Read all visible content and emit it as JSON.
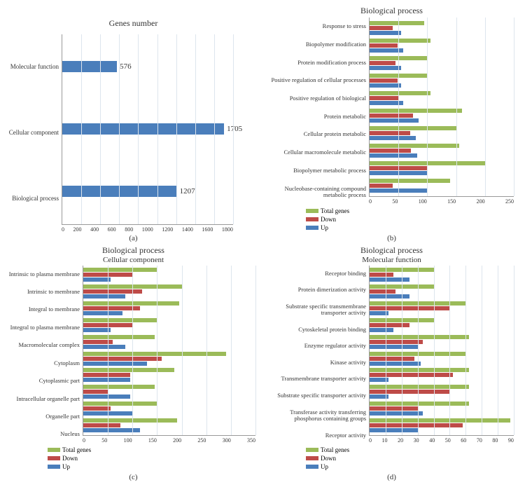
{
  "colors": {
    "blue": "#4a7ebb",
    "red": "#be4b48",
    "green": "#9bbb59",
    "grid": "#dde5ed"
  },
  "panel_a": {
    "title": "Genes number",
    "caption": "(a)",
    "categories": [
      "Molecular function",
      "Cellular component",
      "Biological process"
    ],
    "values": [
      576,
      1705,
      1207
    ],
    "xmax": 1800,
    "xticks": [
      0,
      200,
      400,
      600,
      800,
      1000,
      1200,
      1400,
      1600,
      1800
    ],
    "bar_color": "#4a7ebb"
  },
  "panel_b": {
    "title": "Biological process",
    "caption": "(b)",
    "categories": [
      "Response to stress",
      "Biopolymer modification",
      "Protein modification process",
      "Positive regulation of cellular processes",
      "Positive regulation of biological",
      "Protein metabolic",
      "Cellular protein metabolic",
      "Cellular macromolecule metabolic",
      "Biopolymer metabolic process",
      "Nucleobase-containing compound metabolic process"
    ],
    "series": {
      "Total genes": [
        95,
        105,
        100,
        100,
        105,
        160,
        150,
        155,
        200,
        140
      ],
      "Down": [
        40,
        48,
        45,
        48,
        50,
        75,
        70,
        72,
        100,
        40
      ],
      "Up": [
        55,
        58,
        55,
        55,
        58,
        85,
        80,
        83,
        100,
        100
      ]
    },
    "xmax": 250,
    "xticks": [
      0,
      50,
      100,
      150,
      200,
      250
    ],
    "colors": {
      "Total genes": "#9bbb59",
      "Down": "#be4b48",
      "Up": "#4a7ebb"
    }
  },
  "panel_c": {
    "title": "Biological process",
    "subtitle": "Cellular component",
    "caption": "(c)",
    "categories": [
      "Intrinsic to plasma membrane",
      "Intrinsic to membrane",
      "Integral to membrane",
      "Integral to plasma membrane",
      "Macromolecular complex",
      "Cytoplasm",
      "Cytoplasmic part",
      "Intracellular organelle part",
      "Organelle part",
      "Nucleus"
    ],
    "series": {
      "Total genes": [
        150,
        200,
        195,
        150,
        145,
        290,
        185,
        145,
        150,
        190
      ],
      "Down": [
        100,
        120,
        115,
        100,
        60,
        160,
        95,
        50,
        55,
        75
      ],
      "Up": [
        55,
        85,
        80,
        55,
        85,
        130,
        95,
        95,
        100,
        115
      ]
    },
    "xmax": 350,
    "xticks": [
      0,
      50,
      100,
      150,
      200,
      250,
      300,
      350
    ],
    "colors": {
      "Total genes": "#9bbb59",
      "Down": "#be4b48",
      "Up": "#4a7ebb"
    }
  },
  "panel_d": {
    "title": "Biological process",
    "subtitle": "Molecular function",
    "caption": "(d)",
    "categories": [
      "Receptor binding",
      "Protein dimerization activity",
      "Substrate specific transmembrane transporter activity",
      "Cytoskeletal protein binding",
      "Enzyme regulator activity",
      "Kinase activity",
      "Transmembrane transporter activity",
      "Substrate specific transporter activity",
      "Transferase activity transferring phosphorus containing groups",
      "Receptor activity"
    ],
    "series": {
      "Total genes": [
        40,
        40,
        60,
        40,
        62,
        60,
        62,
        62,
        62,
        88
      ],
      "Down": [
        15,
        16,
        50,
        25,
        33,
        28,
        52,
        50,
        30,
        58
      ],
      "Up": [
        25,
        25,
        12,
        15,
        30,
        32,
        12,
        12,
        33,
        30
      ]
    },
    "xmax": 90,
    "xticks": [
      0,
      10,
      20,
      30,
      40,
      50,
      60,
      70,
      80,
      90
    ],
    "colors": {
      "Total genes": "#9bbb59",
      "Down": "#be4b48",
      "Up": "#4a7ebb"
    }
  },
  "legend_labels": {
    "total": "Total genes",
    "down": "Down",
    "up": "Up"
  }
}
